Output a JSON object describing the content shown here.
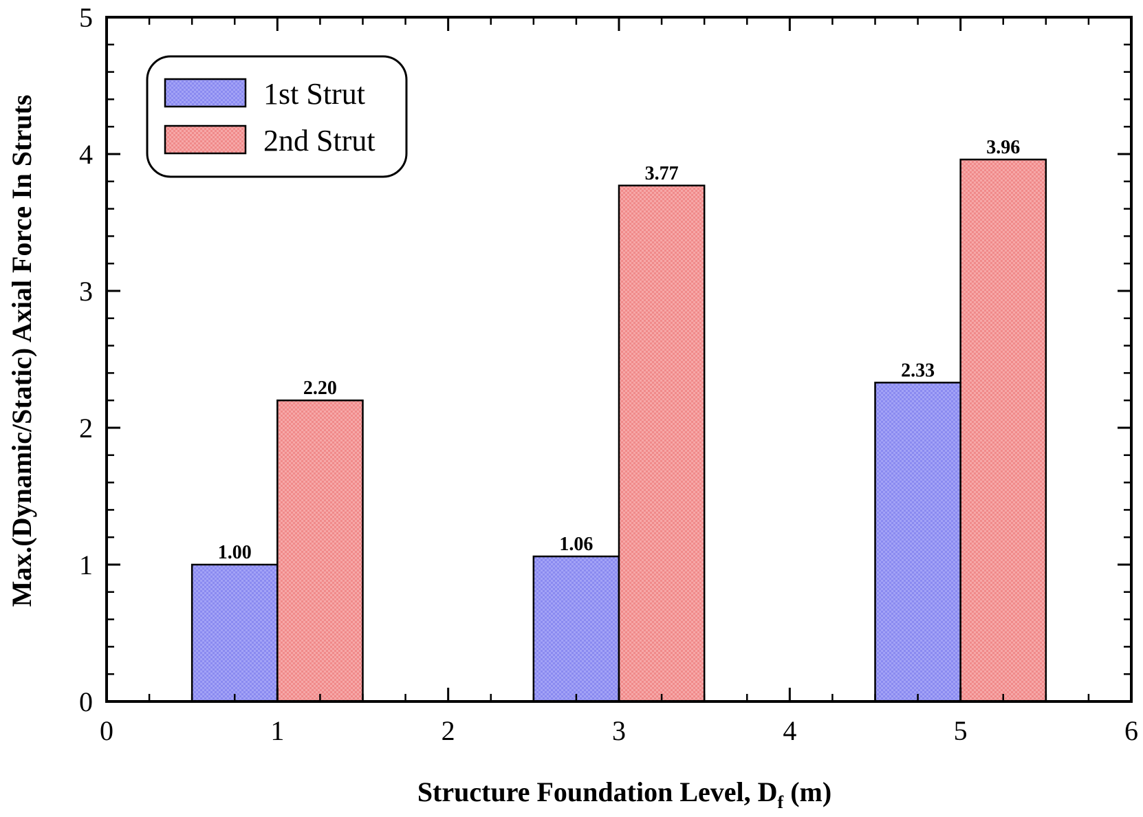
{
  "chart_data": {
    "type": "bar",
    "title": "",
    "xlabel": "Structure Foundation Level, D",
    "xlabel_sub": "f",
    "xlabel_unit": " (m)",
    "ylabel": "Max.(Dynamic/Static) Axial Force In Struts",
    "x": [
      1,
      3,
      5
    ],
    "xlim": [
      0,
      6
    ],
    "ylim": [
      0,
      5
    ],
    "xticks": [
      0,
      1,
      2,
      3,
      4,
      5,
      6
    ],
    "yticks": [
      0,
      1,
      2,
      3,
      4,
      5
    ],
    "bar_width": 0.5,
    "series": [
      {
        "name": "1st Strut",
        "color": "#8a8af0",
        "values": [
          1.0,
          1.06,
          2.33
        ],
        "labels": [
          "1.00",
          "1.06",
          "2.33"
        ]
      },
      {
        "name": "2nd Strut",
        "color": "#f08a8a",
        "values": [
          2.2,
          3.77,
          3.96
        ],
        "labels": [
          "2.20",
          "3.77",
          "3.96"
        ]
      }
    ],
    "legend_position": "top-left",
    "grid": false
  }
}
